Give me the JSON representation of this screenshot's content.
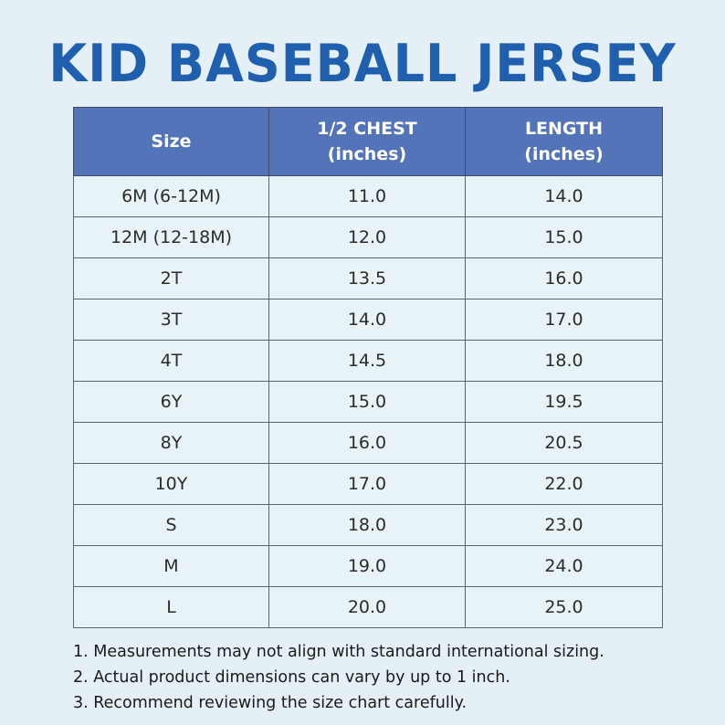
{
  "title": "KID BASEBALL JERSEY",
  "colors": {
    "title": "#1f5fae",
    "header_bg": "#5374b8",
    "page_bg": "#e4f0f5"
  },
  "table": {
    "headers": [
      {
        "line1": "Size",
        "line2": ""
      },
      {
        "line1": "1/2 CHEST",
        "line2": "(inches)"
      },
      {
        "line1": "LENGTH",
        "line2": "(inches)"
      }
    ],
    "rows": [
      [
        "6M (6-12M)",
        "11.0",
        "14.0"
      ],
      [
        "12M (12-18M)",
        "12.0",
        "15.0"
      ],
      [
        "2T",
        "13.5",
        "16.0"
      ],
      [
        "3T",
        "14.0",
        "17.0"
      ],
      [
        "4T",
        "14.5",
        "18.0"
      ],
      [
        "6Y",
        "15.0",
        "19.5"
      ],
      [
        "8Y",
        "16.0",
        "20.5"
      ],
      [
        "10Y",
        "17.0",
        "22.0"
      ],
      [
        "S",
        "18.0",
        "23.0"
      ],
      [
        "M",
        "19.0",
        "24.0"
      ],
      [
        "L",
        "20.0",
        "25.0"
      ]
    ]
  },
  "notes": [
    "1. Measurements may not align with standard international sizing.",
    "2. Actual product dimensions can vary by up to 1 inch.",
    "3. Recommend reviewing the size chart carefully."
  ]
}
